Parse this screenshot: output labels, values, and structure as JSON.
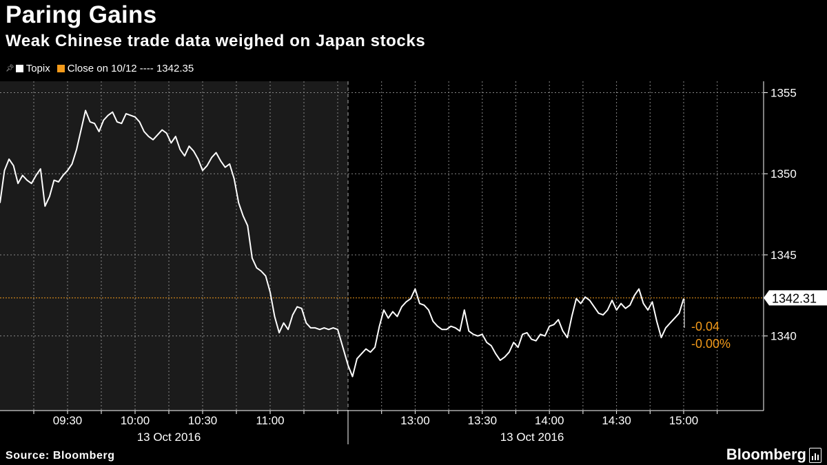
{
  "header": {
    "title": "Paring Gains",
    "subtitle": "Weak Chinese trade data weighed on Japan stocks"
  },
  "legend": {
    "series_label": "Topix",
    "reference_label": "Close on 10/12 ---- 1342.35"
  },
  "footer": {
    "source": "Source: Bloomberg",
    "brand": "Bloomberg"
  },
  "colors": {
    "background": "#000000",
    "morning_shade": "#1b1b1b",
    "line": "#ffffff",
    "reference": "#f39a1a",
    "grid": "#8a8a8a"
  },
  "chart_data": {
    "type": "line",
    "x_unit": "time (HH:MM), 13 Oct 2016",
    "y_tick_labels": [
      "1355",
      "1350",
      "1345",
      "1340"
    ],
    "y_ticks": [
      1355,
      1350,
      1345,
      1340
    ],
    "ylim": [
      1335.4,
      1355.7
    ],
    "x_tick_labels_am": [
      "09:30",
      "10:00",
      "10:30",
      "11:00"
    ],
    "x_tick_labels_pm": [
      "13:00",
      "13:30",
      "14:00",
      "14:30",
      "15:00"
    ],
    "date_label_am": "13 Oct 2016",
    "date_label_pm": "13 Oct 2016",
    "reference_line": 1342.35,
    "last_value_label": "1342.31",
    "change_label": "-0.04",
    "change_pct_label": "-0.00%",
    "series": [
      {
        "name": "Topix",
        "x": [
          "09:00",
          "09:02",
          "09:04",
          "09:06",
          "09:08",
          "09:10",
          "09:12",
          "09:14",
          "09:16",
          "09:18",
          "09:20",
          "09:22",
          "09:24",
          "09:26",
          "09:28",
          "09:30",
          "09:32",
          "09:34",
          "09:36",
          "09:38",
          "09:40",
          "09:42",
          "09:44",
          "09:46",
          "09:48",
          "09:50",
          "09:52",
          "09:54",
          "09:56",
          "09:58",
          "10:00",
          "10:02",
          "10:04",
          "10:06",
          "10:08",
          "10:10",
          "10:12",
          "10:14",
          "10:16",
          "10:18",
          "10:20",
          "10:22",
          "10:24",
          "10:26",
          "10:28",
          "10:30",
          "10:32",
          "10:34",
          "10:36",
          "10:38",
          "10:40",
          "10:42",
          "10:44",
          "10:46",
          "10:48",
          "10:50",
          "10:52",
          "10:54",
          "10:56",
          "10:58",
          "11:00",
          "11:02",
          "11:04",
          "11:06",
          "11:08",
          "11:10",
          "11:12",
          "11:14",
          "11:16",
          "11:18",
          "11:20",
          "11:22",
          "11:24",
          "11:26",
          "11:28",
          "11:30",
          "12:30",
          "12:32",
          "12:34",
          "12:36",
          "12:38",
          "12:40",
          "12:42",
          "12:44",
          "12:46",
          "12:48",
          "12:50",
          "12:52",
          "12:54",
          "12:56",
          "12:58",
          "13:00",
          "13:02",
          "13:04",
          "13:06",
          "13:08",
          "13:10",
          "13:12",
          "13:14",
          "13:16",
          "13:18",
          "13:20",
          "13:22",
          "13:24",
          "13:26",
          "13:28",
          "13:30",
          "13:32",
          "13:34",
          "13:36",
          "13:38",
          "13:40",
          "13:42",
          "13:44",
          "13:46",
          "13:48",
          "13:50",
          "13:52",
          "13:54",
          "13:56",
          "13:58",
          "14:00",
          "14:02",
          "14:04",
          "14:06",
          "14:08",
          "14:10",
          "14:12",
          "14:14",
          "14:16",
          "14:18",
          "14:20",
          "14:22",
          "14:24",
          "14:26",
          "14:28",
          "14:30",
          "14:32",
          "14:34",
          "14:36",
          "14:38",
          "14:40",
          "14:42",
          "14:44",
          "14:46",
          "14:48",
          "14:50",
          "14:52",
          "14:54",
          "14:56",
          "14:58",
          "15:00"
        ],
        "values": [
          1348.2,
          1350.2,
          1350.9,
          1350.5,
          1349.4,
          1349.9,
          1349.6,
          1349.4,
          1349.9,
          1350.3,
          1348.0,
          1348.6,
          1349.6,
          1349.5,
          1349.9,
          1350.2,
          1350.6,
          1351.5,
          1352.7,
          1353.9,
          1353.2,
          1353.1,
          1352.6,
          1353.3,
          1353.6,
          1353.8,
          1353.2,
          1353.1,
          1353.7,
          1353.6,
          1353.5,
          1353.2,
          1352.6,
          1352.3,
          1352.1,
          1352.4,
          1352.7,
          1352.5,
          1351.9,
          1352.3,
          1351.5,
          1351.1,
          1351.7,
          1351.4,
          1350.9,
          1350.2,
          1350.5,
          1351.0,
          1351.3,
          1350.8,
          1350.4,
          1350.6,
          1349.7,
          1348.2,
          1347.4,
          1346.8,
          1344.8,
          1344.2,
          1344.0,
          1343.7,
          1342.7,
          1341.2,
          1340.2,
          1340.8,
          1340.4,
          1341.3,
          1341.8,
          1341.7,
          1340.8,
          1340.5,
          1340.5,
          1340.4,
          1340.5,
          1340.4,
          1340.5,
          1340.4,
          1338.2,
          1337.5,
          1338.6,
          1338.9,
          1339.2,
          1339.0,
          1339.3,
          1340.6,
          1341.6,
          1341.1,
          1341.5,
          1341.2,
          1341.8,
          1342.1,
          1342.3,
          1342.9,
          1342.0,
          1341.9,
          1341.6,
          1340.9,
          1340.6,
          1340.4,
          1340.4,
          1340.6,
          1340.5,
          1340.3,
          1341.6,
          1340.3,
          1340.1,
          1340.0,
          1340.1,
          1339.6,
          1339.4,
          1338.9,
          1338.5,
          1338.7,
          1339.0,
          1339.6,
          1339.3,
          1340.1,
          1340.2,
          1339.8,
          1339.7,
          1340.1,
          1340.0,
          1340.6,
          1340.7,
          1341.0,
          1340.3,
          1339.9,
          1341.2,
          1342.3,
          1342.0,
          1342.4,
          1342.2,
          1341.8,
          1341.4,
          1341.3,
          1341.6,
          1342.2,
          1341.6,
          1342.0,
          1341.7,
          1341.9,
          1342.5,
          1342.9,
          1342.0,
          1341.6,
          1342.1,
          1340.9,
          1339.9,
          1340.5,
          1340.8,
          1341.1,
          1341.4,
          1342.3
        ]
      }
    ]
  }
}
